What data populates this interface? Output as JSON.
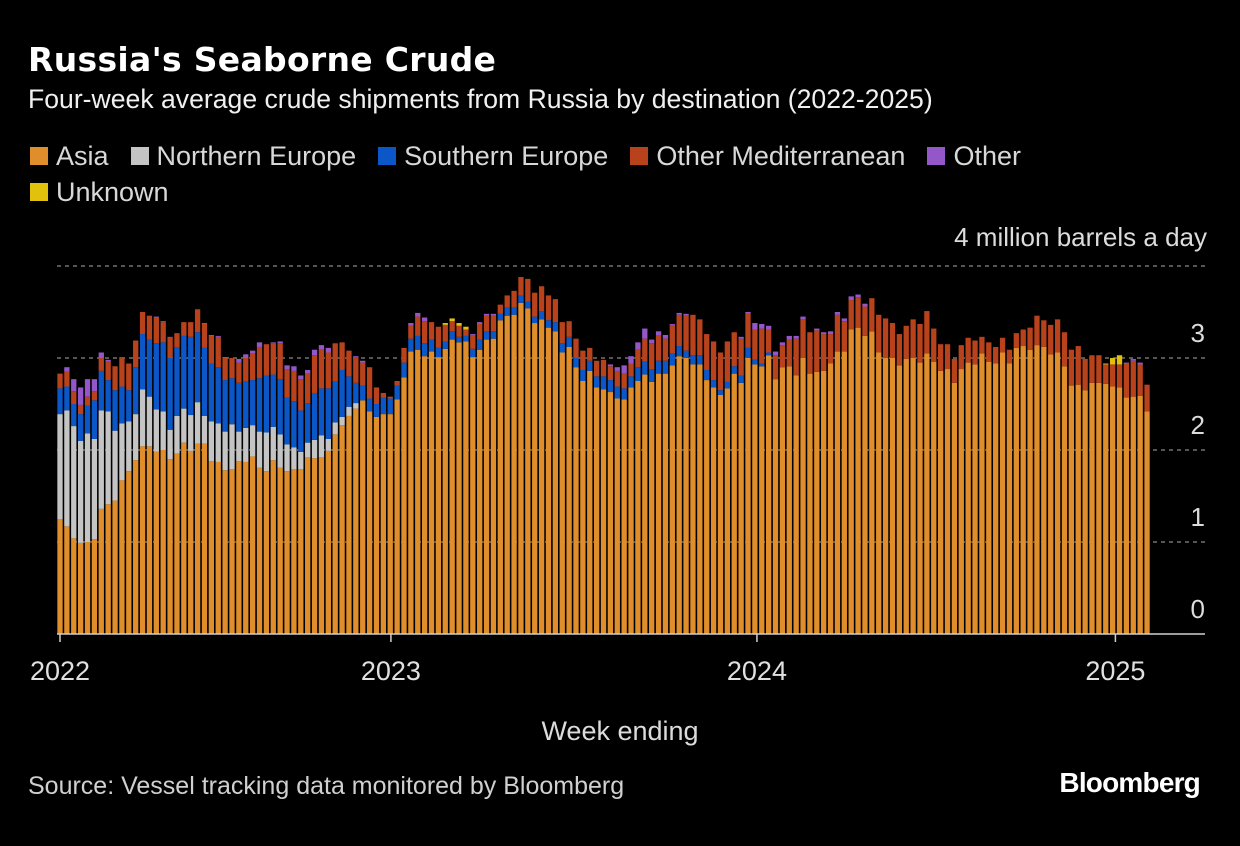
{
  "chart_data": {
    "type": "bar",
    "stacked": true,
    "title": "Russia's Seaborne Crude",
    "subtitle": "Four-week average crude shipments from Russia by destination (2022-2025)",
    "xlabel": "Week ending",
    "ylabel": "4 million barrels a day",
    "ylim": [
      0,
      4
    ],
    "y_ticks": [
      "0",
      "1",
      "2",
      "3"
    ],
    "x_ticks": [
      {
        "label": "2022",
        "at_week": 0
      },
      {
        "label": "2023",
        "at_week": 48.1
      },
      {
        "label": "2024",
        "at_week": 101.3
      },
      {
        "label": "2025",
        "at_week": 153.4
      }
    ],
    "grid": true,
    "legend_position": "top-left",
    "source": "Source: Vessel tracking data monitored by Bloomberg",
    "series": [
      {
        "name": "Asia",
        "color": "#e08e2b",
        "values": [
          1.25,
          1.17,
          1.04,
          0.99,
          1.0,
          1.03,
          1.36,
          1.41,
          1.45,
          1.67,
          1.77,
          1.89,
          2.04,
          2.04,
          1.98,
          2.0,
          1.9,
          1.96,
          2.08,
          1.99,
          2.07,
          2.07,
          1.88,
          1.87,
          1.78,
          1.79,
          1.88,
          1.87,
          1.93,
          1.81,
          1.77,
          1.89,
          1.81,
          1.77,
          1.79,
          1.79,
          1.92,
          1.91,
          1.92,
          1.99,
          2.17,
          2.27,
          2.37,
          2.45,
          2.54,
          2.42,
          2.36,
          2.39,
          2.39,
          2.55,
          2.79,
          3.07,
          3.09,
          3.02,
          3.07,
          3.01,
          3.1,
          3.2,
          3.17,
          3.18,
          3.01,
          3.09,
          3.2,
          3.21,
          3.41,
          3.46,
          3.47,
          3.6,
          3.54,
          3.38,
          3.42,
          3.33,
          3.29,
          3.06,
          3.12,
          2.9,
          2.75,
          2.86,
          2.68,
          2.66,
          2.63,
          2.56,
          2.55,
          2.68,
          2.75,
          2.82,
          2.74,
          2.83,
          2.83,
          2.92,
          3.02,
          3.0,
          2.93,
          2.93,
          2.76,
          2.68,
          2.6,
          2.67,
          2.83,
          2.73,
          3.0,
          2.93,
          2.91,
          3.03,
          2.77,
          2.9,
          2.91,
          2.81,
          3.0,
          2.83,
          2.85,
          2.86,
          2.94,
          3.07,
          3.07,
          3.31,
          3.33,
          3.24,
          3.29,
          3.06,
          3.0,
          3.0,
          2.92,
          2.99,
          3.0,
          2.95,
          3.05,
          2.96,
          2.86,
          2.88,
          2.73,
          2.88,
          2.95,
          2.93,
          3.05,
          2.96,
          2.94,
          3.06,
          2.94,
          3.11,
          3.13,
          3.09,
          3.14,
          3.12,
          3.04,
          3.06,
          2.91,
          2.7,
          2.71,
          2.65,
          2.73,
          2.73,
          2.72,
          2.69,
          2.68,
          2.57,
          2.58,
          2.59,
          2.42
        ]
      },
      {
        "name": "Northern Europe",
        "color": "#c4c4c4",
        "values": [
          1.14,
          1.26,
          1.22,
          1.11,
          1.18,
          1.09,
          1.07,
          1.01,
          0.76,
          0.62,
          0.54,
          0.5,
          0.62,
          0.54,
          0.46,
          0.42,
          0.32,
          0.41,
          0.37,
          0.39,
          0.45,
          0.3,
          0.43,
          0.42,
          0.42,
          0.49,
          0.32,
          0.37,
          0.34,
          0.39,
          0.42,
          0.36,
          0.36,
          0.29,
          0.24,
          0.19,
          0.16,
          0.2,
          0.24,
          0.13,
          0.13,
          0.09,
          0.1,
          0.06,
          0,
          0,
          0,
          0,
          0,
          0,
          0,
          0,
          0,
          0,
          0,
          0,
          0,
          0,
          0,
          0,
          0,
          0,
          0,
          0,
          0,
          0,
          0,
          0,
          0,
          0,
          0,
          0,
          0,
          0,
          0,
          0,
          0,
          0,
          0,
          0,
          0,
          0,
          0,
          0,
          0,
          0,
          0,
          0,
          0,
          0,
          0,
          0,
          0,
          0,
          0,
          0,
          0,
          0,
          0,
          0,
          0,
          0,
          0,
          0,
          0,
          0,
          0,
          0,
          0,
          0,
          0,
          0,
          0,
          0,
          0,
          0,
          0,
          0,
          0,
          0,
          0,
          0,
          0,
          0,
          0,
          0,
          0,
          0,
          0,
          0,
          0,
          0,
          0,
          0,
          0,
          0,
          0,
          0,
          0,
          0,
          0,
          0,
          0,
          0,
          0,
          0,
          0,
          0,
          0,
          0,
          0,
          0,
          0,
          0,
          0,
          0,
          0,
          0,
          0
        ]
      },
      {
        "name": "Southern Europe",
        "color": "#0b57c8",
        "values": [
          0.28,
          0.26,
          0.24,
          0.29,
          0.3,
          0.42,
          0.43,
          0.34,
          0.44,
          0.4,
          0.34,
          0.51,
          0.6,
          0.62,
          0.72,
          0.75,
          0.78,
          0.75,
          0.79,
          0.85,
          0.76,
          0.74,
          0.63,
          0.61,
          0.56,
          0.5,
          0.53,
          0.51,
          0.49,
          0.58,
          0.62,
          0.57,
          0.6,
          0.51,
          0.5,
          0.45,
          0.43,
          0.51,
          0.51,
          0.55,
          0.45,
          0.51,
          0.33,
          0.22,
          0.16,
          0.14,
          0.14,
          0.18,
          0.17,
          0.15,
          0.16,
          0.14,
          0.15,
          0.14,
          0.13,
          0.1,
          0.08,
          0.09,
          0.06,
          0.06,
          0.09,
          0.11,
          0.09,
          0.08,
          0.07,
          0.09,
          0.08,
          0.08,
          0.07,
          0.07,
          0.09,
          0.08,
          0.1,
          0.1,
          0.11,
          0.1,
          0.12,
          0.11,
          0.12,
          0.14,
          0.13,
          0.13,
          0.12,
          0.12,
          0.15,
          0.14,
          0.14,
          0.14,
          0.14,
          0.13,
          0.11,
          0.08,
          0.1,
          0.1,
          0.11,
          0.08,
          0.05,
          0.07,
          0.08,
          0.08,
          0.11,
          0.05,
          0.03,
          0.03,
          0,
          0,
          0,
          0,
          0,
          0,
          0,
          0,
          0,
          0,
          0,
          0,
          0,
          0,
          0,
          0,
          0,
          0,
          0,
          0,
          0,
          0,
          0,
          0,
          0,
          0,
          0,
          0,
          0,
          0,
          0,
          0,
          0,
          0,
          0,
          0,
          0,
          0,
          0,
          0,
          0,
          0,
          0,
          0,
          0,
          0,
          0,
          0,
          0,
          0,
          0,
          0,
          0,
          0,
          0
        ]
      },
      {
        "name": "Other Mediterranean",
        "color": "#b8421c",
        "values": [
          0.16,
          0.16,
          0.14,
          0.1,
          0.1,
          0.1,
          0.14,
          0.2,
          0.26,
          0.32,
          0.29,
          0.29,
          0.24,
          0.26,
          0.28,
          0.22,
          0.22,
          0.15,
          0.15,
          0.16,
          0.25,
          0.26,
          0.3,
          0.33,
          0.24,
          0.22,
          0.22,
          0.25,
          0.29,
          0.34,
          0.34,
          0.34,
          0.39,
          0.31,
          0.33,
          0.34,
          0.32,
          0.41,
          0.42,
          0.39,
          0.41,
          0.3,
          0.28,
          0.28,
          0.25,
          0.34,
          0.18,
          0.05,
          0.02,
          0.05,
          0.16,
          0.14,
          0.21,
          0.24,
          0.19,
          0.23,
          0.18,
          0.11,
          0.12,
          0.07,
          0.15,
          0.17,
          0.17,
          0.17,
          0.1,
          0.13,
          0.18,
          0.2,
          0.25,
          0.26,
          0.27,
          0.27,
          0.25,
          0.23,
          0.17,
          0.21,
          0.21,
          0.14,
          0.17,
          0.18,
          0.15,
          0.17,
          0.16,
          0.14,
          0.19,
          0.25,
          0.28,
          0.28,
          0.24,
          0.31,
          0.34,
          0.38,
          0.44,
          0.39,
          0.39,
          0.42,
          0.41,
          0.44,
          0.37,
          0.4,
          0.37,
          0.33,
          0.38,
          0.25,
          0.26,
          0.24,
          0.29,
          0.4,
          0.42,
          0.45,
          0.45,
          0.4,
          0.32,
          0.4,
          0.33,
          0.32,
          0.33,
          0.32,
          0.36,
          0.41,
          0.43,
          0.38,
          0.34,
          0.36,
          0.42,
          0.42,
          0.46,
          0.36,
          0.29,
          0.27,
          0.26,
          0.26,
          0.27,
          0.26,
          0.18,
          0.21,
          0.18,
          0.16,
          0.15,
          0.16,
          0.18,
          0.24,
          0.32,
          0.29,
          0.32,
          0.36,
          0.37,
          0.39,
          0.42,
          0.34,
          0.3,
          0.3,
          0.21,
          0.24,
          0.25,
          0.37,
          0.39,
          0.34,
          0.29
        ]
      },
      {
        "name": "Other",
        "color": "#9457c9",
        "values": [
          0,
          0.05,
          0.13,
          0.19,
          0.19,
          0.13,
          0.06,
          0.02,
          0,
          0,
          0,
          0,
          0,
          0,
          0.01,
          0.01,
          0.01,
          0,
          0,
          0,
          0,
          0.01,
          0.01,
          0.01,
          0.01,
          0,
          0.04,
          0.04,
          0.03,
          0.05,
          0,
          0.01,
          0.02,
          0.04,
          0.05,
          0.04,
          0.04,
          0.06,
          0.05,
          0.05,
          0,
          0,
          0,
          0.01,
          0.02,
          0,
          0,
          0,
          0,
          0,
          0,
          0.03,
          0.04,
          0.04,
          0,
          0,
          0,
          0,
          0,
          0,
          0.01,
          0.02,
          0.02,
          0.02,
          0,
          0,
          0,
          0,
          0,
          0,
          0,
          0,
          0,
          0,
          0,
          0,
          0,
          0,
          0,
          0,
          0.02,
          0.04,
          0.09,
          0.08,
          0.08,
          0.11,
          0.04,
          0.04,
          0.04,
          0.01,
          0.02,
          0.02,
          0,
          0,
          0,
          0,
          0,
          0,
          0,
          0.02,
          0.02,
          0.07,
          0.05,
          0.04,
          0.04,
          0.03,
          0.04,
          0.03,
          0.03,
          0,
          0.02,
          0.02,
          0.03,
          0.03,
          0.03,
          0.04,
          0.03,
          0.03,
          0,
          0,
          0,
          0,
          0,
          0,
          0,
          0,
          0,
          0,
          0,
          0,
          0,
          0,
          0,
          0,
          0,
          0,
          0,
          0,
          0,
          0,
          0,
          0,
          0,
          0,
          0,
          0,
          0,
          0,
          0,
          0,
          0,
          0,
          0,
          0,
          0,
          0.01,
          0.02,
          0.02
        ]
      },
      {
        "name": "Unknown",
        "color": "#e2c10c",
        "values": [
          0,
          0,
          0,
          0,
          0,
          0,
          0,
          0,
          0,
          0,
          0,
          0,
          0,
          0,
          0,
          0,
          0,
          0,
          0,
          0,
          0,
          0,
          0,
          0,
          0,
          0,
          0,
          0,
          0,
          0,
          0,
          0,
          0,
          0,
          0,
          0,
          0,
          0,
          0,
          0,
          0,
          0,
          0,
          0,
          0,
          0,
          0,
          0,
          0,
          0,
          0,
          0,
          0,
          0,
          0,
          0,
          0.02,
          0.03,
          0.03,
          0.03,
          0,
          0,
          0,
          0,
          0,
          0,
          0,
          0,
          0,
          0,
          0,
          0,
          0,
          0,
          0,
          0,
          0,
          0,
          0,
          0,
          0,
          0,
          0,
          0,
          0,
          0,
          0,
          0,
          0,
          0,
          0,
          0,
          0,
          0,
          0,
          0,
          0,
          0,
          0,
          0,
          0,
          0,
          0,
          0,
          0,
          0,
          0,
          0,
          0,
          0,
          0,
          0,
          0,
          0,
          0,
          0,
          0,
          0,
          0,
          0,
          0,
          0,
          0,
          0,
          0,
          0,
          0,
          0,
          0,
          0,
          0,
          0,
          0,
          0,
          0,
          0,
          0,
          0,
          0,
          0,
          0,
          0,
          0,
          0,
          0,
          0,
          0,
          0,
          0,
          0,
          0,
          0,
          0.01,
          0.07,
          0.1
        ]
      }
    ]
  },
  "footer": {
    "logo": "Bloomberg"
  }
}
